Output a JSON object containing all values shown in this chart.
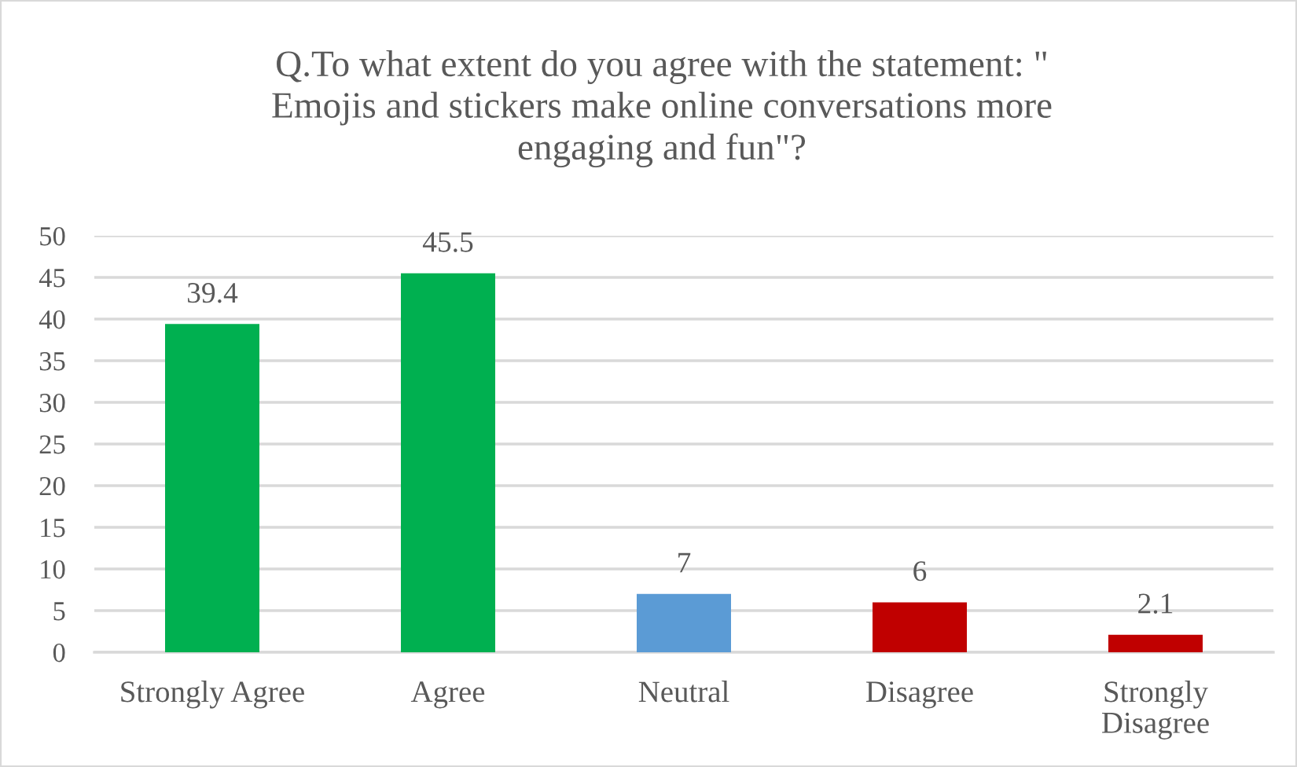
{
  "chart_data": {
    "type": "bar",
    "title": "Q.To what extent do you agree with the statement: \"\nEmojis and stickers make online conversations more\nengaging and fun\"?",
    "categories": [
      "Strongly Agree",
      "Agree",
      "Neutral",
      "Disagree",
      "Strongly\nDisagree"
    ],
    "values": [
      39.4,
      45.5,
      7,
      6,
      2.1
    ],
    "colors": [
      "#00b050",
      "#00b050",
      "#5b9bd5",
      "#c00000",
      "#c00000"
    ],
    "ylim": [
      0,
      50
    ],
    "yticks": [
      0,
      5,
      10,
      15,
      20,
      25,
      30,
      35,
      40,
      45,
      50
    ],
    "grid": "y",
    "data_labels": true
  }
}
